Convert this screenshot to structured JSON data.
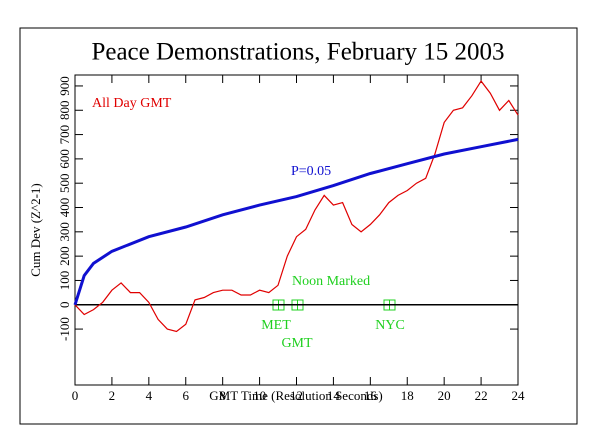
{
  "chart_data": {
    "type": "line",
    "title": "Peace Demonstrations, February 15 2003",
    "xlabel": "GMT Time (Resolution Seconds)",
    "ylabel": "Cum Dev (Z^2-1)",
    "annotations": [
      {
        "text": "All Day GMT",
        "color": "#e00000"
      },
      {
        "text": "P=0.05",
        "color": "#1010d0"
      },
      {
        "text": "Noon Marked",
        "color": "#20d020"
      },
      {
        "text": "MET",
        "color": "#20d020"
      },
      {
        "text": "GMT",
        "color": "#20d020"
      },
      {
        "text": "NYC",
        "color": "#20d020"
      }
    ],
    "xlim": [
      0,
      24
    ],
    "xticks": [
      0,
      2,
      4,
      6,
      8,
      10,
      12,
      14,
      16,
      18,
      20,
      22,
      24
    ],
    "ylim": [
      -330,
      945
    ],
    "yticks": [
      -100,
      0,
      100,
      200,
      300,
      400,
      500,
      600,
      700,
      800,
      900
    ],
    "series": [
      {
        "color": "#e00000",
        "x": [
          0,
          0.5,
          1,
          1.5,
          2,
          2.5,
          3,
          3.5,
          4,
          4.5,
          5,
          5.5,
          6,
          6.5,
          7,
          7.5,
          8,
          8.5,
          9,
          9.5,
          10,
          10.5,
          11,
          11.5,
          12,
          12.5,
          13,
          13.5,
          14,
          14.5,
          15,
          15.5,
          16,
          16.5,
          17,
          17.5,
          18,
          18.5,
          19,
          19.5,
          20,
          20.5,
          21,
          21.5,
          22,
          22.5,
          23,
          23.5,
          24
        ],
        "values": [
          0,
          -40,
          -20,
          10,
          60,
          90,
          50,
          50,
          10,
          -60,
          -100,
          -110,
          -80,
          20,
          30,
          50,
          60,
          60,
          40,
          40,
          60,
          50,
          80,
          200,
          280,
          310,
          390,
          450,
          410,
          420,
          330,
          300,
          330,
          370,
          420,
          450,
          470,
          500,
          520,
          620,
          750,
          800,
          810,
          860,
          920,
          870,
          800,
          840,
          780
        ]
      },
      {
        "color": "#1010d0",
        "x": [
          0,
          0.5,
          1,
          2,
          4,
          6,
          8,
          10,
          12,
          14,
          16,
          18,
          20,
          22,
          24
        ],
        "values": [
          0,
          120,
          170,
          220,
          280,
          320,
          370,
          410,
          445,
          490,
          540,
          580,
          620,
          650,
          680
        ]
      }
    ]
  }
}
